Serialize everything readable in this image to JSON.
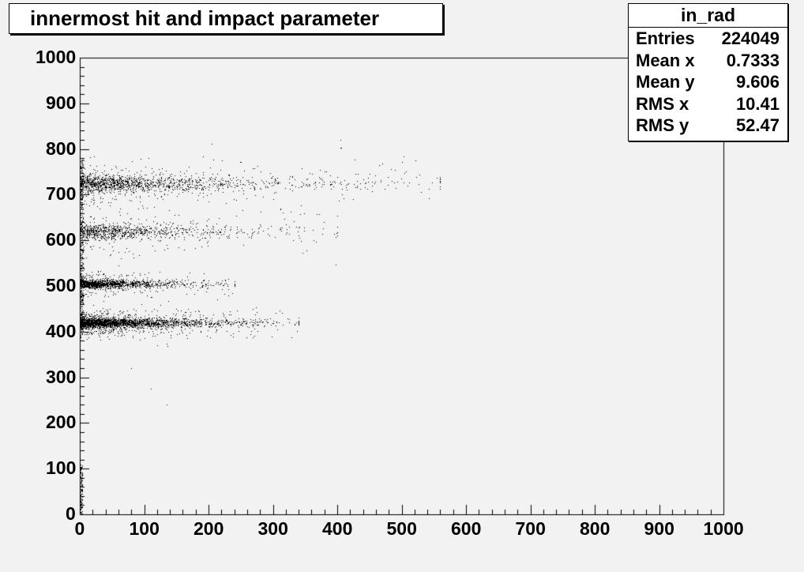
{
  "title": "innermost hit and impact parameter",
  "stats": {
    "name": "in_rad",
    "rows": [
      {
        "label": "Entries",
        "value": "224049"
      },
      {
        "label": "Mean x",
        "value": "0.7333"
      },
      {
        "label": "Mean y",
        "value": "9.606"
      },
      {
        "label": "RMS x",
        "value": "10.41"
      },
      {
        "label": "RMS y",
        "value": "52.47"
      }
    ]
  },
  "colors": {
    "background": "#f2f2f2",
    "plot_background": "#f2f2f2",
    "markers": "#000000",
    "box_fill": "#ffffff"
  },
  "chart_data": {
    "type": "scatter",
    "title": "innermost hit and impact parameter",
    "xlabel": "",
    "ylabel": "",
    "xlim": [
      0,
      1000
    ],
    "ylim": [
      0,
      1000
    ],
    "x_ticks": [
      0,
      100,
      200,
      300,
      400,
      500,
      600,
      700,
      800,
      900,
      1000
    ],
    "y_ticks": [
      0,
      100,
      200,
      300,
      400,
      500,
      600,
      700,
      800,
      900,
      1000
    ],
    "grid": false,
    "legend": "none",
    "clusters": [
      {
        "y_center": 420,
        "y_spread": 12,
        "x_max": 340,
        "density": 1.0
      },
      {
        "y_center": 505,
        "y_spread": 10,
        "x_max": 240,
        "density": 0.55
      },
      {
        "y_center": 620,
        "y_spread": 20,
        "x_max": 400,
        "density": 0.35
      },
      {
        "y_center": 725,
        "y_spread": 22,
        "x_max": 560,
        "density": 0.55
      }
    ],
    "sample_points": [
      [
        5,
        420
      ],
      [
        50,
        418
      ],
      [
        100,
        421
      ],
      [
        150,
        419
      ],
      [
        200,
        417
      ],
      [
        250,
        415
      ],
      [
        300,
        418
      ],
      [
        10,
        505
      ],
      [
        60,
        503
      ],
      [
        120,
        500
      ],
      [
        180,
        502
      ],
      [
        230,
        500
      ],
      [
        20,
        620
      ],
      [
        100,
        625
      ],
      [
        180,
        630
      ],
      [
        260,
        615
      ],
      [
        340,
        610
      ],
      [
        15,
        725
      ],
      [
        80,
        720
      ],
      [
        160,
        728
      ],
      [
        240,
        722
      ],
      [
        330,
        740
      ],
      [
        450,
        745
      ],
      [
        560,
        712
      ],
      [
        80,
        320
      ],
      [
        110,
        275
      ],
      [
        135,
        240
      ],
      [
        2,
        60
      ],
      [
        3,
        100
      ]
    ]
  }
}
